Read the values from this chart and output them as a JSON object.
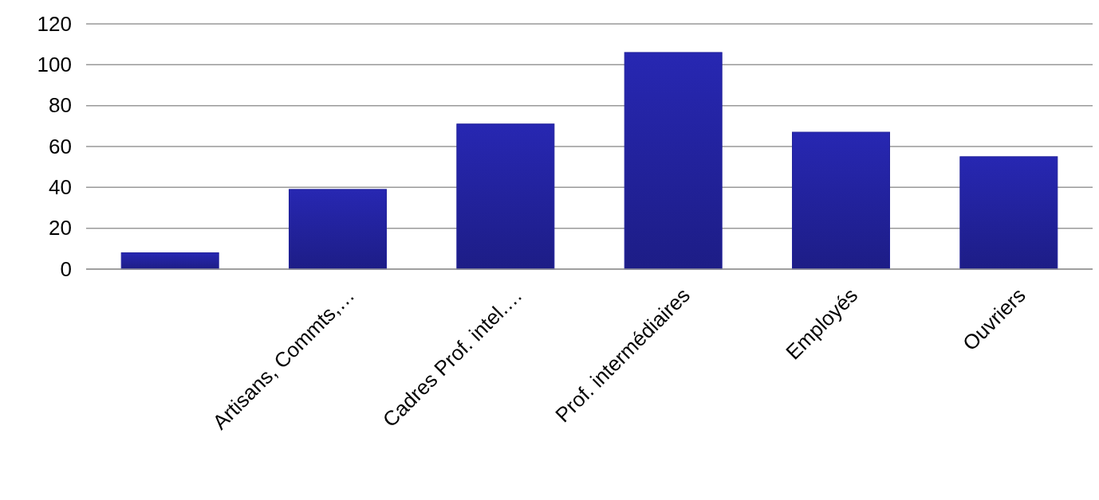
{
  "chart_data": {
    "type": "bar",
    "categories": [
      null,
      "Artisans, Commts,…",
      "Cadres Prof. intel.…",
      "Prof. intermédiaires",
      "Employés",
      "Ouvriers"
    ],
    "values": [
      8,
      39,
      71,
      106,
      67,
      55
    ],
    "color": "#22229a",
    "ylim": [
      0,
      120
    ],
    "yticks": [
      0,
      20,
      40,
      60,
      80,
      100,
      120
    ],
    "grid": "y"
  }
}
